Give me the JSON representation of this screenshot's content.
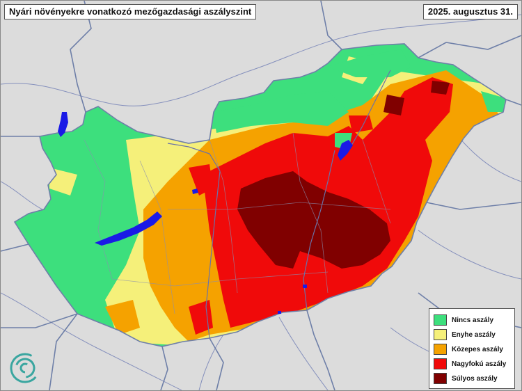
{
  "map": {
    "title": "Nyári növényekre vonatkozó mezőgazdasági aszályszint",
    "date": "2025. augusztus 31.",
    "colors": {
      "background": "#dcdcdc",
      "border": "#6e7fa8",
      "water": "#1a1ae6"
    }
  },
  "legend": {
    "items": [
      {
        "label": "Nincs aszály",
        "color": "#3ddf7d"
      },
      {
        "label": "Enyhe aszály",
        "color": "#f5f07a"
      },
      {
        "label": "Közepes aszály",
        "color": "#f5a200"
      },
      {
        "label": "Nagyfokú aszály",
        "color": "#f00a0a"
      },
      {
        "label": "Súlyos aszály",
        "color": "#800000"
      }
    ]
  },
  "logo": {
    "icon": "swirl-logo-icon",
    "color": "#3aa6a0"
  }
}
